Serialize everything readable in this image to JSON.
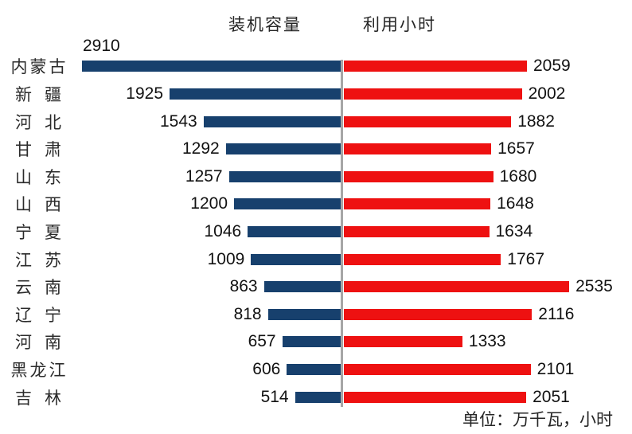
{
  "chart_data": {
    "type": "bar",
    "variant": "diverging-horizontal (tornado)",
    "categories": [
      "内蒙古",
      "新疆",
      "河北",
      "甘肃",
      "山东",
      "山西",
      "宁夏",
      "江苏",
      "云南",
      "辽宁",
      "河南",
      "黑龙江",
      "吉林"
    ],
    "series": [
      {
        "name": "装机容量",
        "side": "left",
        "color": "#17406D",
        "values": [
          2910,
          1925,
          1543,
          1292,
          1257,
          1200,
          1046,
          1009,
          863,
          818,
          657,
          606,
          514
        ]
      },
      {
        "name": "利用小时",
        "side": "right",
        "color": "#EE1111",
        "values": [
          2059,
          2002,
          1882,
          1657,
          1680,
          1648,
          1634,
          1767,
          2535,
          2116,
          1333,
          2101,
          2051
        ]
      }
    ],
    "footnote": "单位：万千瓦，小时",
    "divider_color": "#A6A6A6",
    "scale_max": 2910,
    "legend_position": "top-inline-headers",
    "grid": false,
    "data_labels": true
  }
}
